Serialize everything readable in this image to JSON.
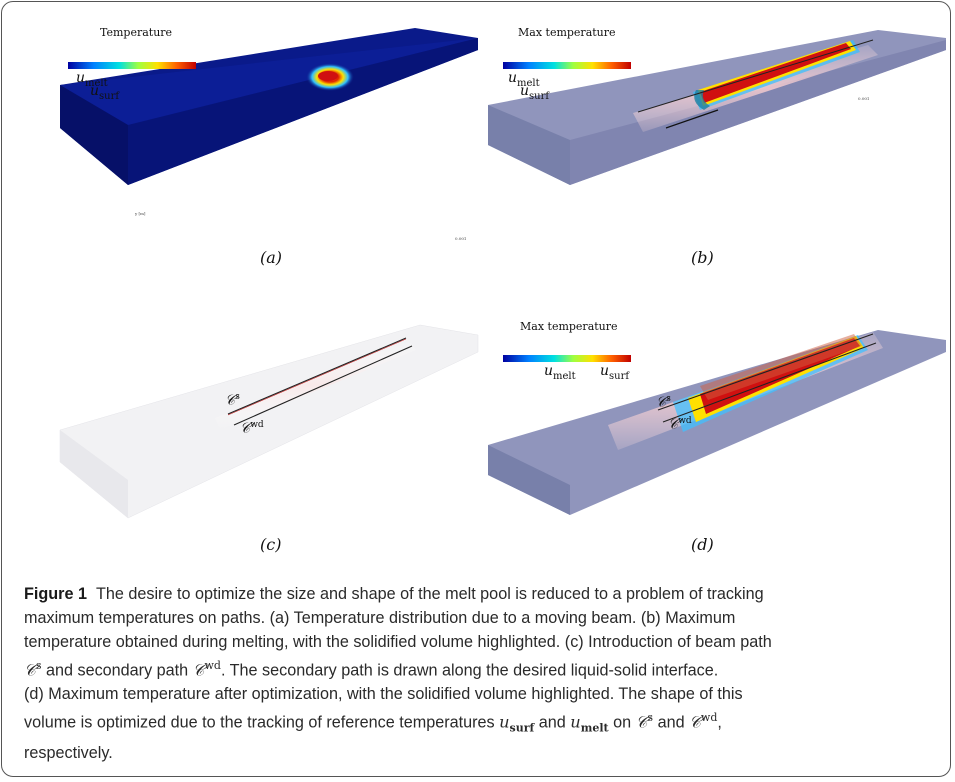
{
  "panels": {
    "a": {
      "title": "Temperature",
      "label_melt": "u",
      "sub_melt": "melt",
      "label_surf": "u",
      "sub_surf": "surf",
      "caption": "(a)"
    },
    "b": {
      "title": "Max  temperature",
      "label_melt": "u",
      "sub_melt": "melt",
      "label_surf": "u",
      "sub_surf": "surf",
      "caption": "(b)"
    },
    "c": {
      "path_s": "𝒞",
      "path_s_sup": "s",
      "path_wd": "𝒞",
      "path_wd_sup": "wd",
      "caption": "(c)"
    },
    "d": {
      "title": "Max  temperature",
      "label_melt": "u",
      "sub_melt": "melt",
      "label_surf": "u",
      "sub_surf": "surf",
      "path_s": "𝒞",
      "path_s_sup": "s",
      "path_wd": "𝒞",
      "path_wd_sup": "wd",
      "caption": "(d)"
    }
  },
  "caption": {
    "label": "Figure 1",
    "line1": "The desire to optimize the size and shape of the melt pool is reduced to a problem of tracking",
    "line2": "maximum temperatures on paths. (a) Temperature distribution due to a moving beam. (b) Maximum",
    "line3": "temperature obtained during melting, with the solidified volume highlighted. (c) Introduction of beam path",
    "line4a": "and secondary path",
    "line4b": ". The secondary path is drawn along the desired liquid-solid interface.",
    "line5": "(d) Maximum temperature after optimization, with the solidified volume highlighted. The shape of this",
    "line6a": "volume is optimized due to the tracking of reference temperatures",
    "line6b": "and",
    "line6c": "on",
    "line6d": "and",
    "line6e": ",",
    "line7": "respectively.",
    "u": "u",
    "surf": "surf",
    "melt": "melt",
    "C": "𝒞",
    "s": "s",
    "wd": "wd"
  },
  "colors": {
    "frame": "#555555",
    "slab_blue": "#0a1a8a",
    "slab_translucent": "#8a8fb8",
    "slab_white": "#f2f2f4",
    "hot": "#c00000"
  }
}
